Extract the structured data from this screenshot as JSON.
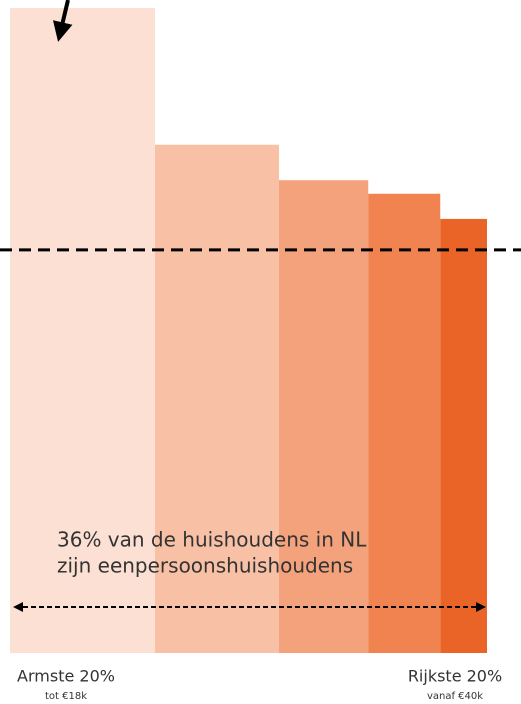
{
  "chart_data": {
    "type": "bar",
    "annotation": [
      "36% van de huishoudens in NL",
      "zijn eenpersoonshuishoudens"
    ],
    "left_label": "Armste 20%",
    "left_sublabel": "tot €18k",
    "right_label": "Rijkste 20%",
    "right_sublabel": "vanaf €40k",
    "values": [
      100,
      78.8,
      73.3,
      71.2,
      67.3
    ],
    "widths": [
      30.4,
      26.0,
      18.7,
      15.1,
      9.8
    ],
    "colors": [
      "#fbe0d3",
      "#f8c1a6",
      "#f4a27b",
      "#f08350",
      "#ea6427"
    ],
    "reference": 62.5,
    "ylim": [
      0,
      100
    ],
    "xlim": [
      0,
      100
    ]
  }
}
